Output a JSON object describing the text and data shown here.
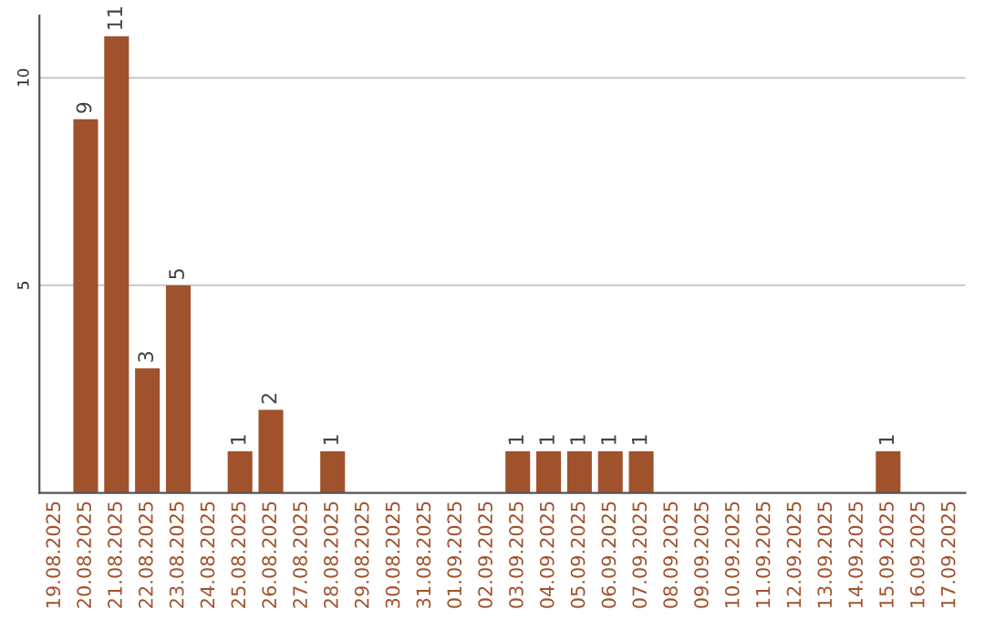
{
  "chart_data": {
    "type": "bar",
    "categories": [
      "19.08.2025",
      "20.08.2025",
      "21.08.2025",
      "22.08.2025",
      "23.08.2025",
      "24.08.2025",
      "25.08.2025",
      "26.08.2025",
      "27.08.2025",
      "28.08.2025",
      "29.08.2025",
      "30.08.2025",
      "31.08.2025",
      "01.09.2025",
      "02.09.2025",
      "03.09.2025",
      "04.09.2025",
      "05.09.2025",
      "06.09.2025",
      "07.09.2025",
      "08.09.2025",
      "09.09.2025",
      "10.09.2025",
      "11.09.2025",
      "12.09.2025",
      "13.09.2025",
      "14.09.2025",
      "15.09.2025",
      "16.09.2025",
      "17.09.2025"
    ],
    "values": [
      0,
      9,
      11,
      3,
      5,
      0,
      1,
      2,
      0,
      1,
      0,
      0,
      0,
      0,
      0,
      1,
      1,
      1,
      1,
      1,
      0,
      0,
      0,
      0,
      0,
      0,
      0,
      1,
      0,
      0
    ],
    "value_labels": [
      null,
      "9",
      "11",
      "3",
      "5",
      null,
      "1",
      "2",
      null,
      "1",
      null,
      null,
      null,
      null,
      null,
      "1",
      "1",
      "1",
      "1",
      "1",
      null,
      null,
      null,
      null,
      null,
      null,
      null,
      "1",
      null,
      null
    ],
    "color": "#a0522d",
    "ylim": [
      0,
      11.5
    ],
    "yticks": [
      5,
      10
    ],
    "grid": "y"
  }
}
